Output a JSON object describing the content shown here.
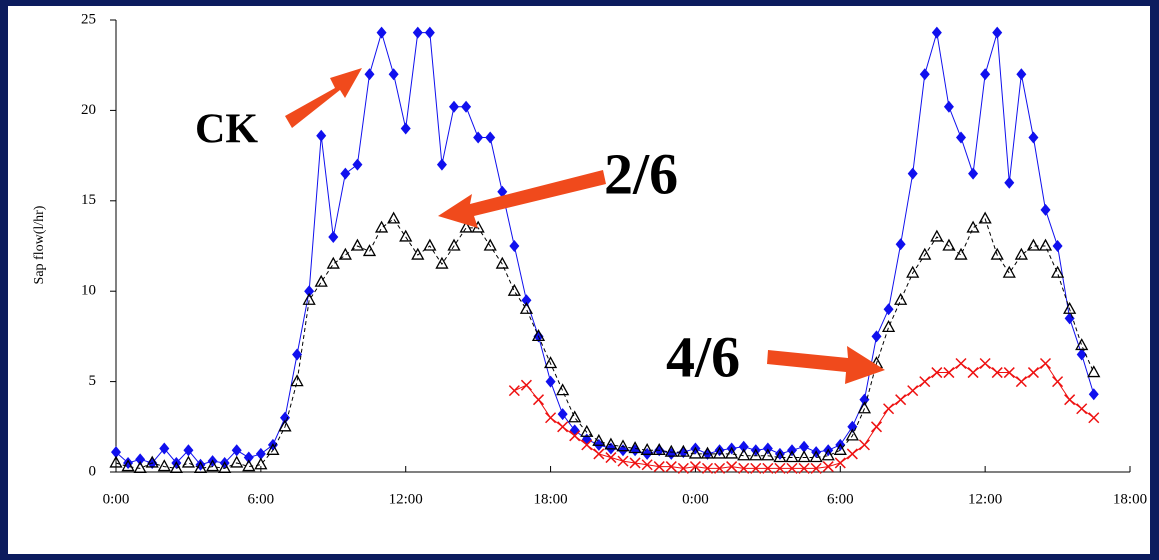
{
  "chart_data": {
    "type": "line",
    "ylabel": "Sap flow(l/hr)",
    "x": [
      0,
      0.5,
      1,
      1.5,
      2,
      2.5,
      3,
      3.5,
      4,
      4.5,
      5,
      5.5,
      6,
      6.5,
      7,
      7.5,
      8,
      8.5,
      9,
      9.5,
      10,
      10.5,
      11,
      11.5,
      12,
      12.5,
      13,
      13.5,
      14,
      14.5,
      15,
      15.5,
      16,
      16.5,
      17,
      17.5,
      18,
      18.5,
      19,
      19.5,
      20,
      20.5,
      21,
      21.5,
      22,
      22.5,
      23,
      23.5,
      24,
      24.5,
      25,
      25.5,
      26,
      26.5,
      27,
      27.5,
      28,
      28.5,
      29,
      29.5,
      30,
      30.5,
      31,
      31.5,
      32,
      32.5,
      33,
      33.5,
      34,
      34.5,
      35,
      35.5,
      36,
      36.5,
      37,
      37.5,
      38,
      38.5,
      39,
      39.5,
      40,
      40.5
    ],
    "xlim": [
      0,
      42
    ],
    "xticks": [
      {
        "value": 0,
        "label": "0:00"
      },
      {
        "value": 6,
        "label": "6:00"
      },
      {
        "value": 12,
        "label": "12:00"
      },
      {
        "value": 18,
        "label": "18:00"
      },
      {
        "value": 24,
        "label": "0:00"
      },
      {
        "value": 30,
        "label": "6:00"
      },
      {
        "value": 36,
        "label": "12:00"
      },
      {
        "value": 42,
        "label": "18:00"
      }
    ],
    "ylim": [
      0,
      25
    ],
    "yticks": [
      0,
      5,
      10,
      15,
      20,
      25
    ],
    "series": [
      {
        "name": "CK",
        "color": "#1010ee",
        "marker": "diamond",
        "values": [
          1.1,
          0.5,
          0.7,
          0.5,
          1.3,
          0.5,
          1.2,
          0.4,
          0.6,
          0.5,
          1.2,
          0.8,
          1.0,
          1.5,
          3,
          6.5,
          10,
          18.6,
          13,
          16.5,
          17,
          22,
          24.3,
          22,
          19,
          24.3,
          24.3,
          17,
          20.2,
          20.2,
          18.5,
          18.5,
          15.5,
          12.5,
          9.5,
          7.5,
          5,
          3.2,
          2.3,
          1.8,
          1.5,
          1.3,
          1.2,
          1.2,
          1.0,
          1.2,
          1.0,
          1.1,
          1.3,
          1.0,
          1.2,
          1.3,
          1.4,
          1.2,
          1.3,
          1.0,
          1.2,
          1.4,
          1.1,
          1.2,
          1.5,
          2.5,
          4,
          7.5,
          9,
          12.6,
          16.5,
          22,
          24.3,
          20.2,
          18.5,
          16.5,
          22,
          24.3,
          16,
          22,
          18.5,
          14.5,
          12.5,
          8.5,
          6.5,
          4.3
        ]
      },
      {
        "name": "2/6",
        "color": "#000000",
        "marker": "triangle",
        "values": [
          0.5,
          0.3,
          0.2,
          0.5,
          0.3,
          0.2,
          0.5,
          0.2,
          0.3,
          0.2,
          0.5,
          0.3,
          0.4,
          1.2,
          2.5,
          5,
          9.5,
          10.5,
          11.5,
          12,
          12.5,
          12.2,
          13.5,
          14,
          13,
          12,
          12.5,
          11.5,
          12.5,
          13.5,
          13.5,
          12.5,
          11.5,
          10,
          9,
          7.5,
          6,
          4.5,
          3,
          2.2,
          1.7,
          1.5,
          1.4,
          1.3,
          1.2,
          1.2,
          1.1,
          1.1,
          1.0,
          1.0,
          1.0,
          1.0,
          0.9,
          0.9,
          0.9,
          0.8,
          0.8,
          0.8,
          0.8,
          0.9,
          1.2,
          2,
          3.5,
          6,
          8,
          9.5,
          11,
          12,
          13,
          12.5,
          12,
          13.5,
          14,
          12,
          11,
          12,
          12.5,
          12.5,
          11,
          9,
          7,
          5.5
        ]
      },
      {
        "name": "4/6",
        "color": "#ee1111",
        "marker": "cross",
        "values": [
          null,
          null,
          null,
          null,
          null,
          null,
          null,
          null,
          null,
          null,
          null,
          null,
          null,
          null,
          null,
          null,
          null,
          null,
          null,
          null,
          null,
          null,
          null,
          null,
          null,
          null,
          null,
          null,
          null,
          null,
          null,
          null,
          null,
          4.5,
          4.8,
          4,
          3,
          2.5,
          2,
          1.5,
          1,
          0.8,
          0.6,
          0.5,
          0.4,
          0.3,
          0.3,
          0.2,
          0.3,
          0.2,
          0.2,
          0.3,
          0.2,
          0.2,
          0.2,
          0.2,
          0.2,
          0.2,
          0.2,
          0.3,
          0.5,
          1,
          1.5,
          2.5,
          3.5,
          4,
          4.5,
          5,
          5.5,
          5.5,
          6,
          5.5,
          6,
          5.5,
          5.5,
          5,
          5.5,
          6,
          5,
          4,
          3.5,
          3
        ]
      }
    ]
  }
}
